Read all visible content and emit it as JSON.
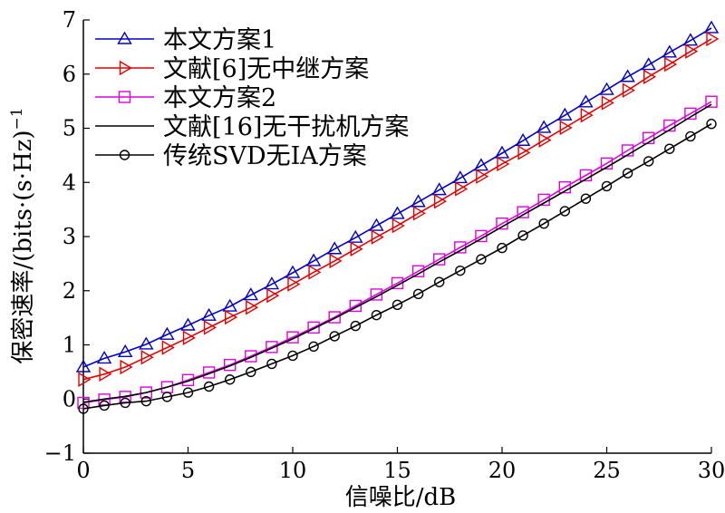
{
  "chart_data": {
    "type": "line",
    "xlabel": "信噪比/dB",
    "ylabel": "保密速率/(bits·(s·Hz)",
    "ylabel_sup": "−1",
    "xlim": [
      0,
      30
    ],
    "ylim": [
      -1,
      7
    ],
    "x_ticks": [
      0,
      5,
      10,
      15,
      20,
      25,
      30
    ],
    "y_ticks": [
      -1,
      0,
      1,
      2,
      3,
      4,
      5,
      6,
      7
    ],
    "x_tick_labels": [
      "0",
      "5",
      "10",
      "15",
      "20",
      "25",
      "30"
    ],
    "y_tick_labels": [
      "−1",
      "0",
      "1",
      "2",
      "3",
      "4",
      "5",
      "6",
      "7"
    ],
    "grid": false,
    "legend_position": "top-left",
    "x": [
      0,
      1,
      2,
      3,
      4,
      5,
      6,
      7,
      8,
      9,
      10,
      11,
      12,
      13,
      14,
      15,
      16,
      17,
      18,
      19,
      20,
      21,
      22,
      23,
      24,
      25,
      26,
      27,
      28,
      29,
      30
    ],
    "series": [
      {
        "name": "本文方案1",
        "color": "#0000cc",
        "marker": "triangle-up",
        "values": [
          0.59,
          0.75,
          0.87,
          1.01,
          1.19,
          1.36,
          1.54,
          1.71,
          1.92,
          2.12,
          2.33,
          2.55,
          2.77,
          2.98,
          3.2,
          3.42,
          3.64,
          3.86,
          4.08,
          4.31,
          4.54,
          4.77,
          5.01,
          5.24,
          5.48,
          5.71,
          5.95,
          6.17,
          6.4,
          6.62,
          6.85
        ]
      },
      {
        "name": "文献[6]无中继方案",
        "color": "#e60000",
        "marker": "triangle-right",
        "values": [
          0.36,
          0.46,
          0.59,
          0.77,
          0.95,
          1.13,
          1.32,
          1.51,
          1.69,
          1.91,
          2.12,
          2.34,
          2.55,
          2.77,
          2.99,
          3.2,
          3.43,
          3.65,
          3.88,
          4.11,
          4.34,
          4.55,
          4.78,
          5.01,
          5.24,
          5.47,
          5.7,
          5.95,
          6.18,
          6.42,
          6.65
        ]
      },
      {
        "name": "本文方案2",
        "color": "#e000e0",
        "marker": "square",
        "values": [
          -0.07,
          -0.01,
          0.04,
          0.12,
          0.22,
          0.35,
          0.49,
          0.63,
          0.79,
          0.96,
          1.14,
          1.32,
          1.51,
          1.72,
          1.93,
          2.14,
          2.36,
          2.58,
          2.8,
          3.01,
          3.24,
          3.45,
          3.68,
          3.91,
          4.13,
          4.35,
          4.59,
          4.82,
          5.05,
          5.27,
          5.49
        ]
      },
      {
        "name": "文献[16]无干扰机方案",
        "color": "#000000",
        "marker": "none",
        "values": [
          -0.06,
          0.0,
          0.05,
          0.12,
          0.22,
          0.33,
          0.47,
          0.61,
          0.77,
          0.94,
          1.11,
          1.3,
          1.49,
          1.69,
          1.89,
          2.1,
          2.31,
          2.53,
          2.74,
          2.96,
          3.18,
          3.4,
          3.62,
          3.84,
          4.06,
          4.28,
          4.51,
          4.74,
          4.97,
          5.21,
          5.44
        ]
      },
      {
        "name": "传统SVD无IA方案",
        "color": "#000000",
        "marker": "circle",
        "values": [
          -0.18,
          -0.12,
          -0.07,
          -0.04,
          0.04,
          0.12,
          0.23,
          0.36,
          0.5,
          0.65,
          0.8,
          0.97,
          1.16,
          1.35,
          1.55,
          1.74,
          1.94,
          2.16,
          2.37,
          2.58,
          2.79,
          3.02,
          3.24,
          3.47,
          3.7,
          3.93,
          4.17,
          4.39,
          4.62,
          4.85,
          5.08
        ]
      }
    ]
  }
}
